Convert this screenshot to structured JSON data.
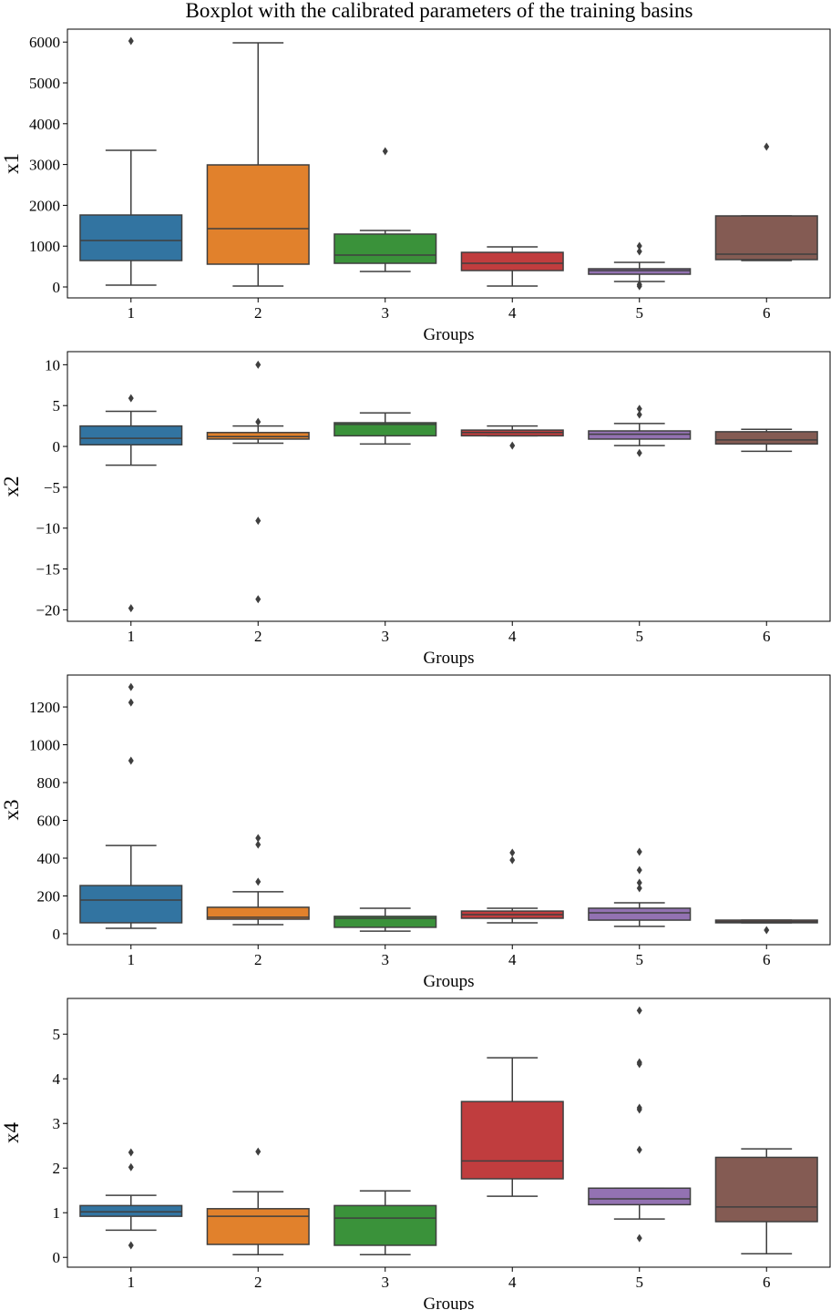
{
  "title": "Boxplot with the calibrated parameters of the training basins",
  "colors": [
    "#3274a1",
    "#e1812c",
    "#3a923a",
    "#c03d3e",
    "#9372b2",
    "#845b53"
  ],
  "chart_data": [
    {
      "type": "box",
      "xlabel": "Groups",
      "ylabel": "x1",
      "categories": [
        "1",
        "2",
        "3",
        "4",
        "5",
        "6"
      ],
      "ylim": [
        -268,
        6317
      ],
      "yticks": [
        0,
        1000,
        2000,
        3000,
        4000,
        5000,
        6000
      ],
      "boxes": [
        {
          "low": 45,
          "q1": 647,
          "median": 1138,
          "q3": 1763,
          "high": 3348,
          "outliers": [
            6027
          ]
        },
        {
          "low": 22,
          "q1": 558,
          "median": 1429,
          "q3": 2991,
          "high": 5982,
          "outliers": []
        },
        {
          "low": 380,
          "q1": 580,
          "median": 781,
          "q3": 1295,
          "high": 1384,
          "outliers": [
            3326
          ]
        },
        {
          "low": 22,
          "q1": 402,
          "median": 580,
          "q3": 848,
          "high": 982,
          "outliers": []
        },
        {
          "low": 134,
          "q1": 312,
          "median": 402,
          "q3": 446,
          "high": 603,
          "outliers": [
            1004,
            870,
            60,
            20
          ]
        },
        {
          "low": 647,
          "q1": 670,
          "median": 804,
          "q3": 1741,
          "high": 1741,
          "outliers": [
            3437
          ]
        }
      ]
    },
    {
      "type": "box",
      "xlabel": "Groups",
      "ylabel": "x2",
      "categories": [
        "1",
        "2",
        "3",
        "4",
        "5",
        "6"
      ],
      "ylim": [
        -21.4,
        11.6
      ],
      "yticks": [
        -20,
        -15,
        -10,
        -5,
        0,
        5,
        10
      ],
      "boxes": [
        {
          "low": -2.3,
          "q1": 0.2,
          "median": 1.0,
          "q3": 2.5,
          "high": 4.3,
          "outliers": [
            5.9,
            -19.8
          ]
        },
        {
          "low": 0.4,
          "q1": 0.9,
          "median": 1.2,
          "q3": 1.7,
          "high": 2.5,
          "outliers": [
            3.0,
            10.0,
            -9.1,
            -18.7
          ]
        },
        {
          "low": 0.3,
          "q1": 1.3,
          "median": 2.7,
          "q3": 2.9,
          "high": 4.1,
          "outliers": []
        },
        {
          "low": 1.3,
          "q1": 1.3,
          "median": 1.7,
          "q3": 2.0,
          "high": 2.5,
          "outliers": [
            0.1
          ]
        },
        {
          "low": 0.1,
          "q1": 0.9,
          "median": 1.5,
          "q3": 1.9,
          "high": 2.8,
          "outliers": [
            4.6,
            3.9,
            -0.8
          ]
        },
        {
          "low": -0.6,
          "q1": 0.3,
          "median": 0.8,
          "q3": 1.8,
          "high": 2.1,
          "outliers": []
        }
      ]
    },
    {
      "type": "box",
      "xlabel": "Groups",
      "ylabel": "x3",
      "categories": [
        "1",
        "2",
        "3",
        "4",
        "5",
        "6"
      ],
      "ylim": [
        -58,
        1369
      ],
      "yticks": [
        0,
        200,
        400,
        600,
        800,
        1000,
        1200
      ],
      "boxes": [
        {
          "low": 29,
          "q1": 58,
          "median": 178,
          "q3": 255,
          "high": 467,
          "outliers": [
            1224,
            1306,
            916
          ]
        },
        {
          "low": 48,
          "q1": 77,
          "median": 87,
          "q3": 140,
          "high": 222,
          "outliers": [
            275,
            472,
            506
          ]
        },
        {
          "low": 14,
          "q1": 34,
          "median": 82,
          "q3": 92,
          "high": 135,
          "outliers": []
        },
        {
          "low": 58,
          "q1": 82,
          "median": 101,
          "q3": 120,
          "high": 135,
          "outliers": [
            429,
            390
          ]
        },
        {
          "low": 39,
          "q1": 72,
          "median": 111,
          "q3": 135,
          "high": 164,
          "outliers": [
            434,
            337,
            270,
            241
          ]
        },
        {
          "low": 58,
          "q1": 58,
          "median": 63,
          "q3": 72,
          "high": 72,
          "outliers": [
            19
          ]
        }
      ]
    },
    {
      "type": "box",
      "xlabel": "Groups",
      "ylabel": "x4",
      "categories": [
        "1",
        "2",
        "3",
        "4",
        "5",
        "6"
      ],
      "ylim": [
        -0.22,
        5.8
      ],
      "yticks": [
        0,
        1,
        2,
        3,
        4,
        5
      ],
      "boxes": [
        {
          "low": 0.61,
          "q1": 0.92,
          "median": 1.02,
          "q3": 1.16,
          "high": 1.39,
          "outliers": [
            2.35,
            2.02,
            0.27
          ]
        },
        {
          "low": 0.06,
          "q1": 0.29,
          "median": 0.92,
          "q3": 1.09,
          "high": 1.47,
          "outliers": [
            2.37
          ]
        },
        {
          "low": 0.06,
          "q1": 0.27,
          "median": 0.88,
          "q3": 1.16,
          "high": 1.49,
          "outliers": []
        },
        {
          "low": 1.37,
          "q1": 1.76,
          "median": 2.16,
          "q3": 3.49,
          "high": 4.47,
          "outliers": []
        },
        {
          "low": 0.86,
          "q1": 1.18,
          "median": 1.31,
          "q3": 1.55,
          "high": 1.55,
          "outliers": [
            5.53,
            4.37,
            4.33,
            3.35,
            3.31,
            2.41,
            0.43
          ]
        },
        {
          "low": 0.08,
          "q1": 0.8,
          "median": 1.13,
          "q3": 2.24,
          "high": 2.43,
          "outliers": []
        }
      ]
    }
  ]
}
